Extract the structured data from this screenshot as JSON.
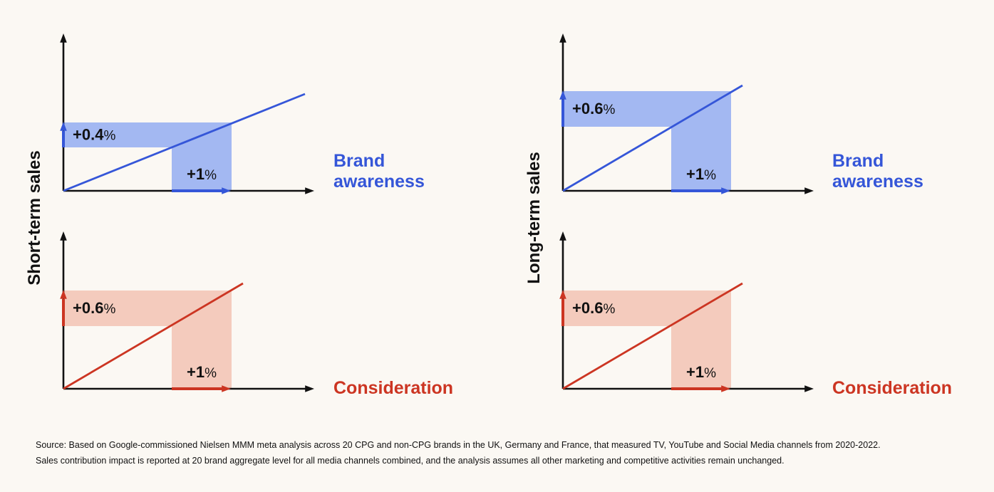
{
  "left_group": {
    "y_axis_label": "Short-term sales",
    "panels": [
      {
        "category": "Brand\nawareness",
        "x_change": "+1",
        "y_change": "+0.4",
        "unit": "%",
        "color": "#3556d8",
        "fill": "#a3b8f2"
      },
      {
        "category": "Consideration",
        "x_change": "+1",
        "y_change": "+0.6",
        "unit": "%",
        "color": "#cc3522",
        "fill": "#f4cbbd"
      }
    ]
  },
  "right_group": {
    "y_axis_label": "Long-term sales",
    "panels": [
      {
        "category": "Brand\nawareness",
        "x_change": "+1",
        "y_change": "+0.6",
        "unit": "%",
        "color": "#3556d8",
        "fill": "#a3b8f2"
      },
      {
        "category": "Consideration",
        "x_change": "+1",
        "y_change": "+0.6",
        "unit": "%",
        "color": "#cc3522",
        "fill": "#f4cbbd"
      }
    ]
  },
  "source": {
    "line1": "Source: Based on Google-commissioned Nielsen MMM meta analysis across 20 CPG and non-CPG brands in the UK, Germany and France, that measured TV, YouTube and Social Media channels from 2020-2022.",
    "line2": "Sales contribution impact is reported at 20 brand aggregate level for all media channels combined, and the analysis assumes all other marketing and competitive activities remain unchanged."
  }
}
